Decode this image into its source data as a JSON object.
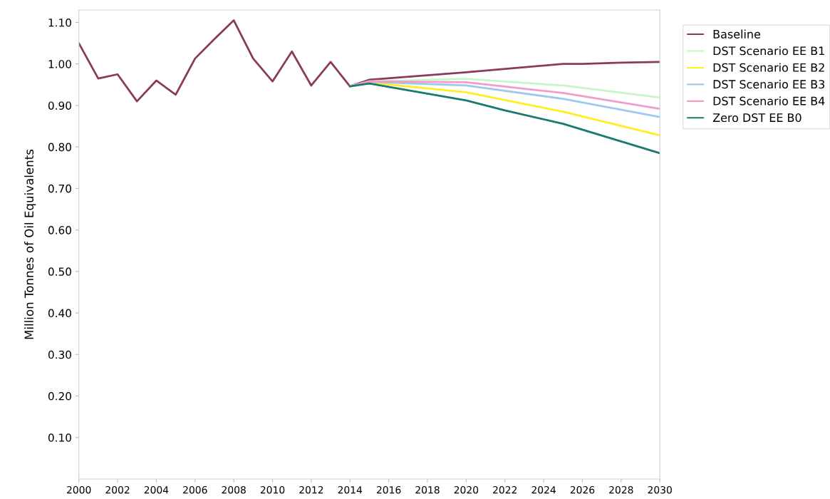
{
  "chart_data": {
    "type": "line",
    "ylabel": "Million Tonnes of Oil Equivalents",
    "xlim": [
      2000,
      2030
    ],
    "xticks": [
      2000,
      2002,
      2004,
      2006,
      2008,
      2010,
      2012,
      2014,
      2016,
      2018,
      2020,
      2022,
      2024,
      2026,
      2028,
      2030
    ],
    "ylim": [
      0,
      1.13
    ],
    "yticks": [
      {
        "value": 0.1,
        "label": "0.10"
      },
      {
        "value": 0.2,
        "label": "0.20"
      },
      {
        "value": 0.3,
        "label": "0.30"
      },
      {
        "value": 0.4,
        "label": "0.40"
      },
      {
        "value": 0.5,
        "label": "0.50"
      },
      {
        "value": 0.6,
        "label": "0.60"
      },
      {
        "value": 0.7,
        "label": "0.70"
      },
      {
        "value": 0.8,
        "label": "0.80"
      },
      {
        "value": 0.9,
        "label": "0.90"
      },
      {
        "value": 1.0,
        "label": "1.00"
      },
      {
        "value": 1.1,
        "label": "1.10"
      }
    ],
    "grid": false,
    "legend": "top right",
    "marker": "none",
    "line_style": "solid",
    "series": [
      {
        "name": "Baseline",
        "color": "#8b3a5e",
        "x": [
          2000,
          2001,
          2002,
          2003,
          2004,
          2005,
          2006,
          2007,
          2008,
          2009,
          2010,
          2011,
          2012,
          2013,
          2014,
          2015,
          2020,
          2025,
          2026,
          2028,
          2030
        ],
        "values": [
          1.05,
          0.965,
          0.975,
          0.91,
          0.96,
          0.926,
          1.013,
          1.06,
          1.105,
          1.013,
          0.958,
          1.03,
          0.948,
          1.005,
          0.946,
          0.962,
          0.98,
          1.0,
          1.0,
          1.003,
          1.005
        ]
      },
      {
        "name": "DST Scenario EE B1",
        "color": "#c8f5c8",
        "x": [
          2014,
          2015,
          2020,
          2025,
          2030
        ],
        "values": [
          0.946,
          0.958,
          0.964,
          0.948,
          0.919
        ]
      },
      {
        "name": "DST Scenario EE B2",
        "color": "#ffee22",
        "x": [
          2014,
          2015,
          2020,
          2025,
          2030
        ],
        "values": [
          0.946,
          0.955,
          0.932,
          0.885,
          0.828
        ]
      },
      {
        "name": "DST Scenario EE B3",
        "color": "#9fc8ef",
        "x": [
          2014,
          2015,
          2020,
          2025,
          2030
        ],
        "values": [
          0.946,
          0.957,
          0.948,
          0.916,
          0.872
        ]
      },
      {
        "name": "DST Scenario EE B4",
        "color": "#f29ccc",
        "x": [
          2014,
          2015,
          2020,
          2025,
          2030
        ],
        "values": [
          0.946,
          0.958,
          0.956,
          0.93,
          0.892
        ]
      },
      {
        "name": "Zero DST EE B0",
        "color": "#1a7a70",
        "x": [
          2014,
          2015,
          2020,
          2022,
          2025,
          2030
        ],
        "values": [
          0.946,
          0.953,
          0.912,
          0.888,
          0.856,
          0.785
        ]
      }
    ]
  }
}
